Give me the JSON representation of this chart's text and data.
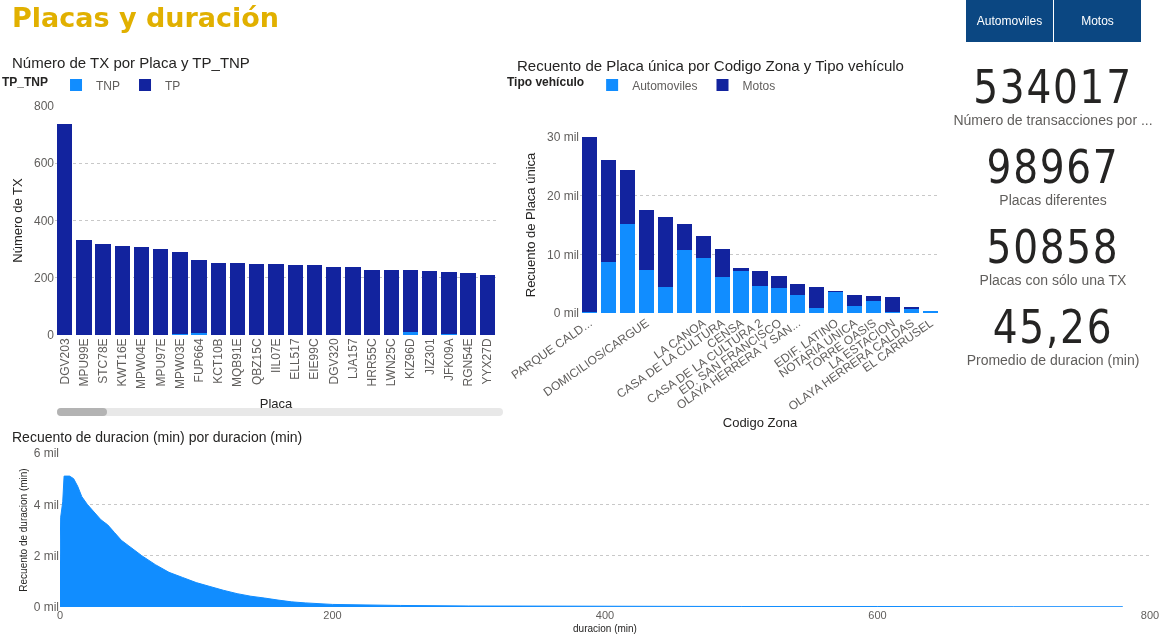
{
  "chart_data": [
    {
      "type": "other",
      "title": "Placas y duración"
    },
    {
      "type": "other",
      "annotations": [
        "Automoviles",
        "Motos"
      ]
    },
    {
      "type": "bar",
      "title": "Número de TX por Placa y TP_TNP",
      "xlabel": "Placa",
      "ylabel": "Número de TX",
      "stacked": true,
      "legend": "top left",
      "legend_title": "TP_TNP",
      "grid": "y",
      "ylim": [
        0,
        800
      ],
      "yticks": [
        0,
        200,
        400,
        600,
        800
      ],
      "categories": [
        "DGV203",
        "MPU99E",
        "STC78E",
        "KWT16E",
        "MPW04E",
        "MPU97E",
        "MPW03E",
        "FUP664",
        "KCT10B",
        "MQB91E",
        "QBZ15C",
        "IIL07E",
        "ELL517",
        "EIE99C",
        "DGV320",
        "LJA157",
        "HRR55C",
        "LWN25C",
        "KIZ96D",
        "JIZ301",
        "JFK09A",
        "RGN54E",
        "YYX27D"
      ],
      "series": [
        {
          "name": "TNP",
          "color": "#118dff",
          "values": [
            0,
            0,
            0,
            0,
            0,
            0,
            3,
            6,
            0,
            0,
            0,
            0,
            0,
            0,
            0,
            0,
            0,
            0,
            12,
            0,
            3,
            0,
            0
          ]
        },
        {
          "name": "TP",
          "color": "#12239e",
          "values": [
            738,
            331,
            319,
            310,
            306,
            299,
            288,
            256,
            251,
            251,
            249,
            248,
            243,
            243,
            236,
            236,
            228,
            226,
            214,
            223,
            217,
            217,
            209
          ]
        }
      ]
    },
    {
      "type": "bar",
      "title": "Recuento de Placa única por Codigo Zona y Tipo vehículo",
      "xlabel": "Codigo Zona",
      "ylabel": "Recuento de Placa única",
      "stacked": true,
      "legend": "top left",
      "legend_title": "Tipo vehículo",
      "grid": "y",
      "ylim": [
        0,
        30
      ],
      "yticks": [
        {
          "value": 0,
          "label": "0 mil"
        },
        {
          "value": 10,
          "label": "10 mil"
        },
        {
          "value": 20,
          "label": "20 mil"
        },
        {
          "value": 30,
          "label": "30 mil"
        }
      ],
      "categories": [
        "PARQUE CALD...",
        null,
        null,
        "DOMICILIOS/CARGUE",
        null,
        null,
        "LA CANOA",
        "CASA DE LA CULTURA",
        "CENSA",
        "CASA DE LA CULTURA 2",
        "ED. SAN FRANCISCO",
        "OLAYA HERRERA Y SAN...",
        null,
        "EDIF. LATINO",
        "NOTARIA UNICA",
        "TORRE OASIS",
        "LA ESTACION",
        "OLAYA HERRERA CALDAS",
        "EL CARRUSEL"
      ],
      "series": [
        {
          "name": "Automoviles",
          "color": "#118dff",
          "values": [
            0.1,
            8.7,
            15.1,
            7.4,
            4.5,
            10.8,
            9.3,
            6.2,
            7.2,
            4.6,
            4.3,
            3.0,
            0.9,
            3.6,
            1.2,
            2.1,
            0.1,
            0.6,
            0.3
          ]
        },
        {
          "name": "Motos",
          "color": "#12239e",
          "values": [
            29.9,
            17.3,
            9.3,
            10.2,
            11.8,
            4.4,
            3.9,
            4.7,
            0.5,
            2.6,
            2.0,
            1.9,
            3.6,
            0.2,
            1.9,
            0.8,
            2.7,
            0.4,
            0
          ]
        }
      ]
    },
    {
      "type": "area",
      "title": "Recuento de duracion (min) por duracion (min)",
      "xlabel": "duracion (min)",
      "ylabel": "Recuento de duracion (min)",
      "grid": "y",
      "color": "#118dff",
      "xlim": [
        0,
        800
      ],
      "xticks": [
        0,
        200,
        400,
        600,
        800
      ],
      "ylim": [
        0,
        6
      ],
      "yticks": [
        {
          "value": 0,
          "label": "0 mil"
        },
        {
          "value": 2,
          "label": "2 mil"
        },
        {
          "value": 4,
          "label": "4 mil"
        },
        {
          "value": 6,
          "label": "6 mil"
        }
      ],
      "x": [
        0,
        0.5,
        2,
        3,
        7,
        10,
        13,
        16,
        20,
        25,
        30,
        35,
        40,
        45,
        50,
        55,
        60,
        70,
        80,
        90,
        100,
        110,
        120,
        130,
        140,
        150,
        160,
        170,
        180,
        200,
        250,
        300,
        400,
        500,
        600,
        700,
        780
      ],
      "values": [
        1.7,
        3.5,
        4.1,
        5.1,
        5.1,
        5.0,
        4.7,
        4.3,
        4.0,
        3.7,
        3.4,
        3.2,
        2.9,
        2.6,
        2.4,
        2.2,
        2.0,
        1.65,
        1.35,
        1.15,
        0.95,
        0.8,
        0.65,
        0.52,
        0.42,
        0.35,
        0.27,
        0.2,
        0.16,
        0.1,
        0.06,
        0.04,
        0.03,
        0.02,
        0.02,
        0.01,
        0.01
      ]
    },
    {
      "type": "other",
      "annotations": [
        "534017",
        "Número de transacciones por ...",
        "98967",
        "Placas diferentes",
        "50858",
        "Placas con sólo una TX",
        "45,26",
        "Promedio de duracion (min)"
      ]
    }
  ]
}
